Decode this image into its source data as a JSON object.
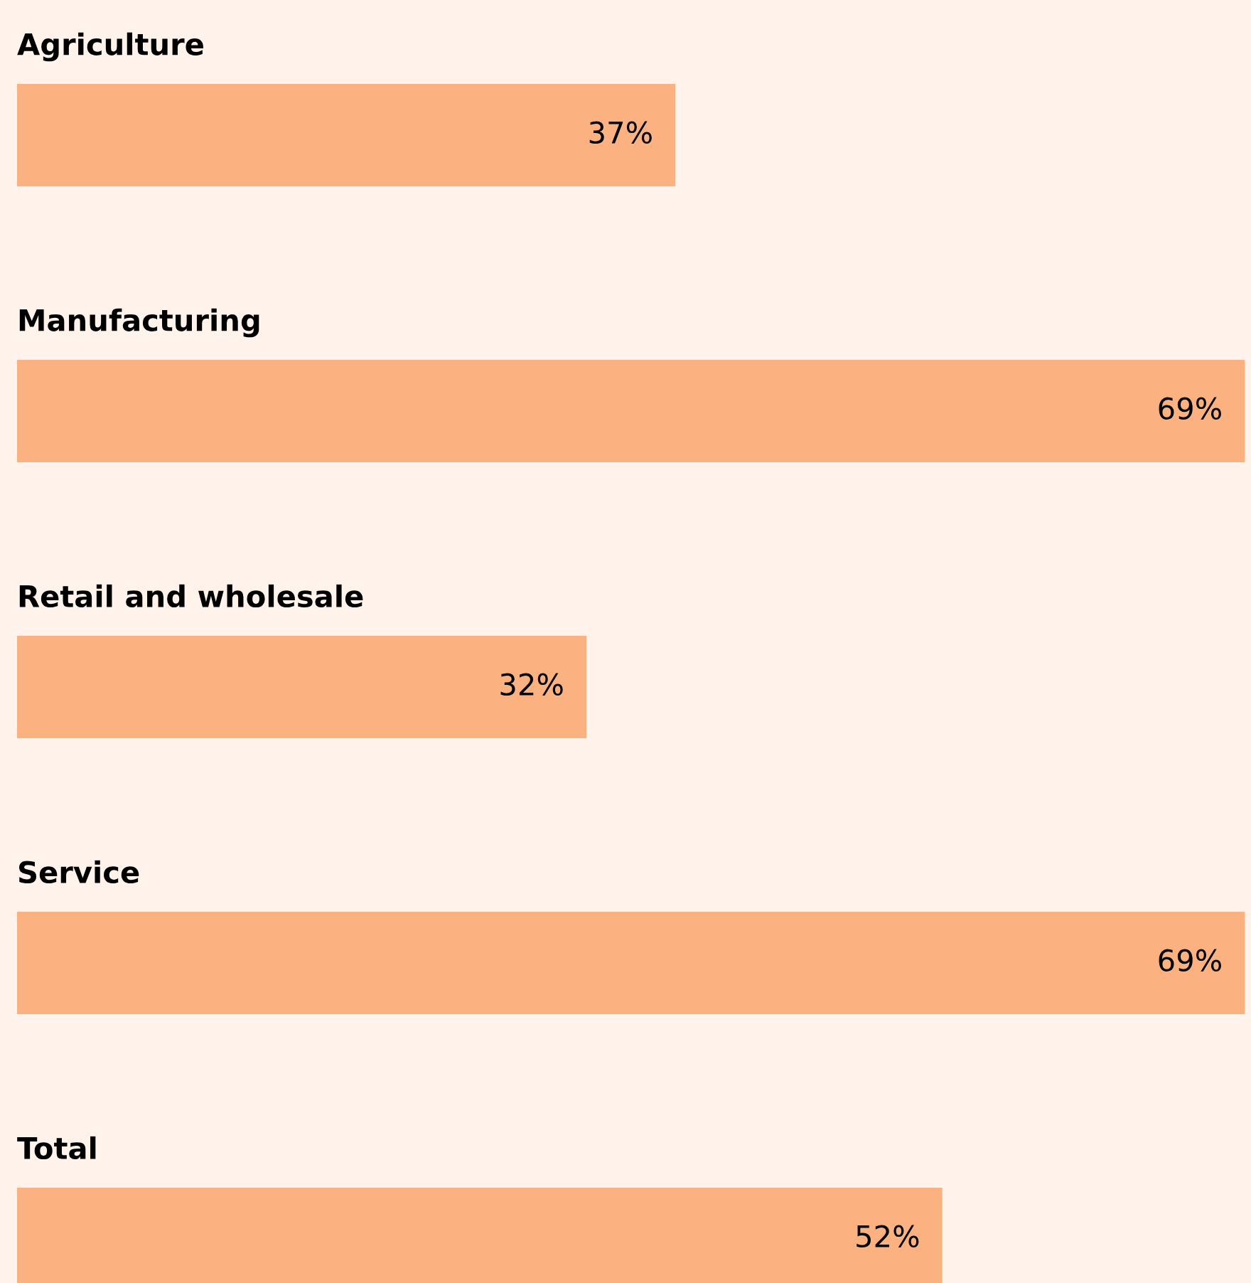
{
  "chart_data": {
    "type": "bar",
    "orientation": "horizontal",
    "categories": [
      "Agriculture",
      "Manufacturing",
      "Retail and wholesale",
      "Service",
      "Total"
    ],
    "values": [
      37,
      69,
      32,
      69,
      52
    ],
    "value_labels": [
      "37%",
      "69%",
      "32%",
      "69%",
      "52%"
    ],
    "color": "#fbb280"
  }
}
